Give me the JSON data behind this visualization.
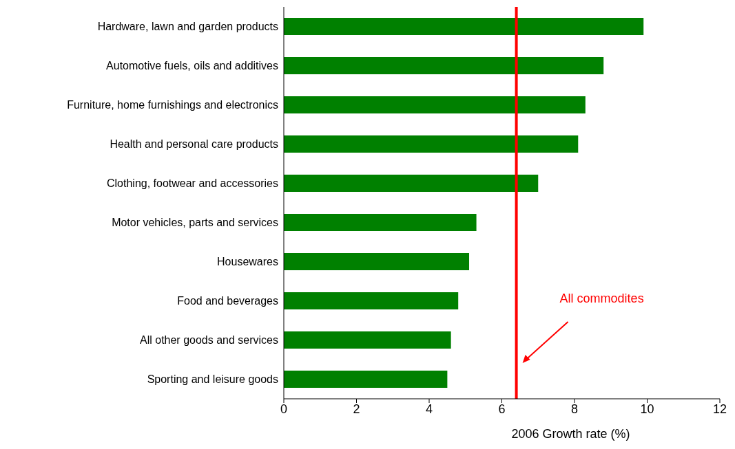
{
  "chart_data": {
    "type": "bar",
    "orientation": "horizontal",
    "xlabel": "2006 Growth rate (%)",
    "categories": [
      "Hardware, lawn and garden products",
      "Automotive fuels, oils and additives",
      "Furniture, home furnishings and electronics",
      "Health and personal care products",
      "Clothing, footwear and accessories",
      "Motor vehicles, parts and services",
      "Housewares",
      "Food and beverages",
      "All other goods and services",
      "Sporting and leisure goods"
    ],
    "values": [
      9.9,
      8.8,
      8.3,
      8.1,
      7.0,
      5.3,
      5.1,
      4.8,
      4.6,
      4.5
    ],
    "color": "#008000",
    "xlim": [
      0,
      12
    ],
    "xticks": [
      0,
      2,
      4,
      6,
      8,
      10,
      12
    ],
    "ref_lines": [
      {
        "axis": "x",
        "value": 6.4,
        "label": "All commodites",
        "color": "#ff0000"
      }
    ],
    "grid": false
  }
}
